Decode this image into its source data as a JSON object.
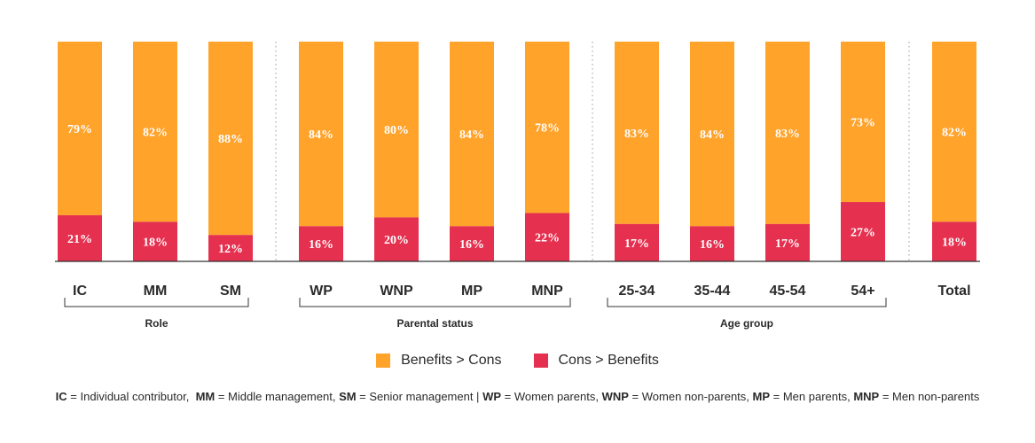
{
  "chart_data": {
    "type": "bar",
    "stacked": true,
    "categories": [
      "IC",
      "MM",
      "SM",
      "WP",
      "WNP",
      "MP",
      "MNP",
      "25-34",
      "35-44",
      "45-54",
      "54+",
      "Total"
    ],
    "groups": [
      {
        "name": "Role",
        "members": [
          "IC",
          "MM",
          "SM"
        ]
      },
      {
        "name": "Parental status",
        "members": [
          "WP",
          "WNP",
          "MP",
          "MNP"
        ]
      },
      {
        "name": "Age group",
        "members": [
          "25-34",
          "35-44",
          "45-54",
          "54+"
        ]
      },
      {
        "name": "",
        "members": [
          "Total"
        ]
      }
    ],
    "series": [
      {
        "name": "Cons > Benefits",
        "color": "#e5304f",
        "values": [
          21,
          18,
          12,
          16,
          20,
          16,
          22,
          17,
          16,
          17,
          27,
          18
        ]
      },
      {
        "name": "Benefits > Cons",
        "color": "#ffa32b",
        "values": [
          79,
          82,
          88,
          84,
          80,
          84,
          78,
          83,
          84,
          83,
          73,
          82
        ]
      }
    ],
    "value_suffix": "%",
    "ylim": [
      0,
      100
    ],
    "title": "",
    "xlabel": "",
    "ylabel": "",
    "legend": [
      "Benefits > Cons",
      "Cons > Benefits"
    ],
    "legend_position": "bottom-center"
  },
  "legend": {
    "benefits_label": "Benefits > Cons",
    "cons_label": "Cons > Benefits"
  },
  "footnote": {
    "ic_abbr": "IC",
    "ic_text": " = Individual contributor,  ",
    "mm_abbr": "MM",
    "mm_text": " = Middle management, ",
    "sm_abbr": "SM",
    "sm_text": " = Senior management | ",
    "wp_abbr": "WP",
    "wp_text": " = Women parents, ",
    "wnp_abbr": "WNP",
    "wnp_text": " = Women non-parents, ",
    "mp_abbr": "MP",
    "mp_text": " = Men parents, ",
    "mnp_abbr": "MNP",
    "mnp_text": " = Men non-parents"
  }
}
